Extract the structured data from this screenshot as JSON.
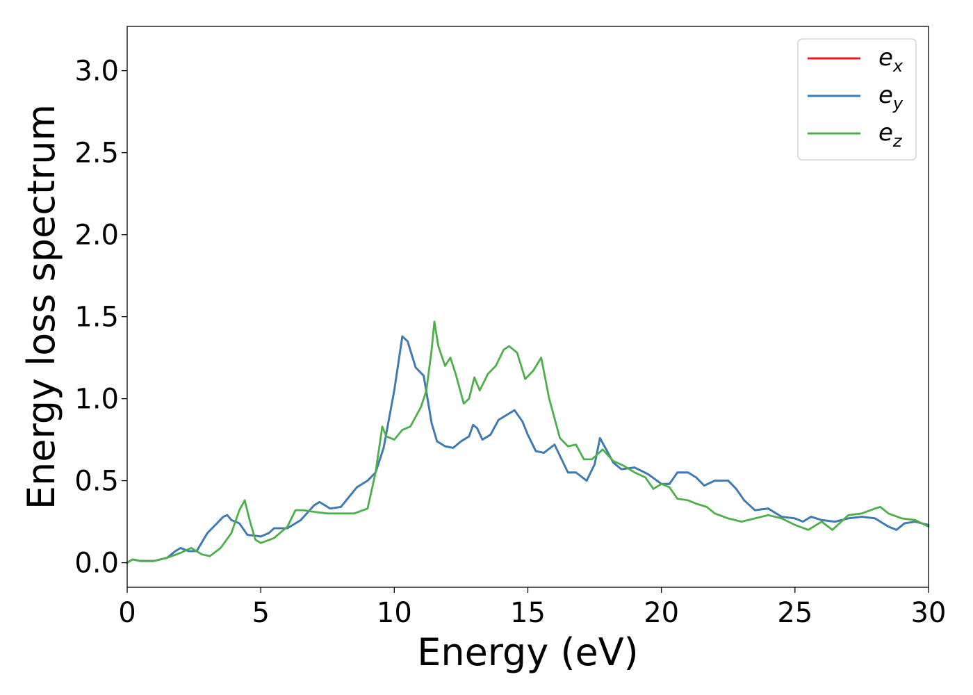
{
  "chart_data": {
    "type": "line",
    "xlabel": "Energy (eV)",
    "ylabel": "Energy loss spectrum",
    "xlim": [
      0,
      30
    ],
    "ylim": [
      -0.15,
      3.27
    ],
    "xticks": [
      0,
      5,
      10,
      15,
      20,
      25,
      30
    ],
    "xtick_labels": [
      "0",
      "5",
      "10",
      "15",
      "20",
      "25",
      "30"
    ],
    "yticks": [
      0.0,
      0.5,
      1.0,
      1.5,
      2.0,
      2.5,
      3.0
    ],
    "ytick_labels": [
      "0.0",
      "0.5",
      "1.0",
      "1.5",
      "2.0",
      "2.5",
      "3.0"
    ],
    "grid": false,
    "legend_position": "top-right",
    "series": [
      {
        "name": "e_x",
        "legend_base": "e",
        "legend_sub": "x",
        "color": "#e41a1c",
        "x": [
          0,
          0.2,
          0.5,
          1,
          1.5,
          1.8,
          2.0,
          2.3,
          2.6,
          3.0,
          3.3,
          3.6,
          3.75,
          3.9,
          4.2,
          4.5,
          5.0,
          5.3,
          5.5,
          6.0,
          6.5,
          7.0,
          7.2,
          7.6,
          8.0,
          8.3,
          8.6,
          9.0,
          9.3,
          9.6,
          10.0,
          10.3,
          10.5,
          10.8,
          11.1,
          11.4,
          11.6,
          11.9,
          12.2,
          12.5,
          12.8,
          12.95,
          13.1,
          13.3,
          13.6,
          13.9,
          14.2,
          14.5,
          14.8,
          15.0,
          15.3,
          15.6,
          16.0,
          16.5,
          16.8,
          17.2,
          17.5,
          17.7,
          17.9,
          18.2,
          18.5,
          19.0,
          19.5,
          20.0,
          20.3,
          20.6,
          21.0,
          21.3,
          21.6,
          22.0,
          22.5,
          22.8,
          23.1,
          23.5,
          24.0,
          24.5,
          25.0,
          25.3,
          25.6,
          26.0,
          26.5,
          27.0,
          27.5,
          28.0,
          28.5,
          28.8,
          29.1,
          29.5,
          30.0
        ],
        "y": [
          0.0,
          0.02,
          0.01,
          0.01,
          0.03,
          0.07,
          0.09,
          0.07,
          0.07,
          0.18,
          0.23,
          0.28,
          0.29,
          0.26,
          0.24,
          0.17,
          0.16,
          0.18,
          0.21,
          0.21,
          0.26,
          0.35,
          0.37,
          0.33,
          0.34,
          0.4,
          0.46,
          0.5,
          0.55,
          0.7,
          1.05,
          1.38,
          1.35,
          1.19,
          1.14,
          0.85,
          0.74,
          0.71,
          0.7,
          0.74,
          0.77,
          0.84,
          0.82,
          0.75,
          0.78,
          0.87,
          0.9,
          0.93,
          0.86,
          0.78,
          0.68,
          0.67,
          0.72,
          0.55,
          0.55,
          0.5,
          0.6,
          0.76,
          0.7,
          0.61,
          0.57,
          0.58,
          0.54,
          0.48,
          0.48,
          0.55,
          0.55,
          0.52,
          0.47,
          0.5,
          0.5,
          0.45,
          0.38,
          0.32,
          0.33,
          0.28,
          0.27,
          0.25,
          0.28,
          0.26,
          0.25,
          0.27,
          0.28,
          0.27,
          0.22,
          0.2,
          0.24,
          0.25,
          0.23
        ]
      },
      {
        "name": "e_y",
        "legend_base": "e",
        "legend_sub": "y",
        "color": "#377eb8",
        "x": [
          0,
          0.2,
          0.5,
          1,
          1.5,
          1.8,
          2.0,
          2.3,
          2.6,
          3.0,
          3.3,
          3.6,
          3.75,
          3.9,
          4.2,
          4.5,
          5.0,
          5.3,
          5.5,
          6.0,
          6.5,
          7.0,
          7.2,
          7.6,
          8.0,
          8.3,
          8.6,
          9.0,
          9.3,
          9.6,
          10.0,
          10.3,
          10.5,
          10.8,
          11.1,
          11.4,
          11.6,
          11.9,
          12.2,
          12.5,
          12.8,
          12.95,
          13.1,
          13.3,
          13.6,
          13.9,
          14.2,
          14.5,
          14.8,
          15.0,
          15.3,
          15.6,
          16.0,
          16.5,
          16.8,
          17.2,
          17.5,
          17.7,
          17.9,
          18.2,
          18.5,
          19.0,
          19.5,
          20.0,
          20.3,
          20.6,
          21.0,
          21.3,
          21.6,
          22.0,
          22.5,
          22.8,
          23.1,
          23.5,
          24.0,
          24.5,
          25.0,
          25.3,
          25.6,
          26.0,
          26.5,
          27.0,
          27.5,
          28.0,
          28.5,
          28.8,
          29.1,
          29.5,
          30.0
        ],
        "y": [
          0.0,
          0.02,
          0.01,
          0.01,
          0.03,
          0.07,
          0.09,
          0.07,
          0.07,
          0.18,
          0.23,
          0.28,
          0.29,
          0.26,
          0.24,
          0.17,
          0.16,
          0.18,
          0.21,
          0.21,
          0.26,
          0.35,
          0.37,
          0.33,
          0.34,
          0.4,
          0.46,
          0.5,
          0.55,
          0.7,
          1.05,
          1.38,
          1.35,
          1.19,
          1.14,
          0.85,
          0.74,
          0.71,
          0.7,
          0.74,
          0.77,
          0.84,
          0.82,
          0.75,
          0.78,
          0.87,
          0.9,
          0.93,
          0.86,
          0.78,
          0.68,
          0.67,
          0.72,
          0.55,
          0.55,
          0.5,
          0.6,
          0.76,
          0.7,
          0.61,
          0.57,
          0.58,
          0.54,
          0.48,
          0.48,
          0.55,
          0.55,
          0.52,
          0.47,
          0.5,
          0.5,
          0.45,
          0.38,
          0.32,
          0.33,
          0.28,
          0.27,
          0.25,
          0.28,
          0.26,
          0.25,
          0.27,
          0.28,
          0.27,
          0.22,
          0.2,
          0.24,
          0.25,
          0.23
        ]
      },
      {
        "name": "e_z",
        "legend_base": "e",
        "legend_sub": "z",
        "color": "#4daf4a",
        "x": [
          0,
          0.2,
          0.5,
          1,
          1.5,
          2.0,
          2.4,
          2.8,
          3.1,
          3.5,
          3.9,
          4.2,
          4.4,
          4.6,
          4.8,
          5.0,
          5.5,
          6.0,
          6.3,
          6.6,
          7.0,
          7.5,
          8.0,
          8.5,
          9.0,
          9.3,
          9.55,
          9.7,
          10.0,
          10.3,
          10.6,
          11.0,
          11.2,
          11.4,
          11.5,
          11.65,
          11.9,
          12.1,
          12.3,
          12.6,
          12.8,
          13.0,
          13.2,
          13.5,
          13.8,
          14.1,
          14.3,
          14.6,
          14.9,
          15.2,
          15.5,
          15.8,
          16.2,
          16.5,
          16.8,
          17.1,
          17.4,
          17.8,
          18.2,
          18.6,
          19.0,
          19.4,
          19.7,
          20.0,
          20.3,
          20.6,
          21.0,
          21.3,
          21.7,
          22.0,
          22.5,
          23.0,
          23.5,
          24.0,
          24.5,
          25.0,
          25.5,
          26.0,
          26.4,
          26.8,
          27.0,
          27.5,
          28.0,
          28.2,
          28.5,
          29.0,
          29.5,
          30.0
        ],
        "y": [
          0.0,
          0.02,
          0.01,
          0.01,
          0.03,
          0.06,
          0.09,
          0.05,
          0.04,
          0.09,
          0.18,
          0.32,
          0.38,
          0.25,
          0.14,
          0.12,
          0.15,
          0.22,
          0.32,
          0.32,
          0.31,
          0.3,
          0.3,
          0.3,
          0.33,
          0.55,
          0.83,
          0.77,
          0.75,
          0.81,
          0.83,
          0.95,
          1.05,
          1.3,
          1.47,
          1.32,
          1.2,
          1.25,
          1.15,
          0.97,
          1.0,
          1.13,
          1.05,
          1.15,
          1.2,
          1.3,
          1.32,
          1.28,
          1.12,
          1.17,
          1.25,
          1.0,
          0.76,
          0.71,
          0.72,
          0.63,
          0.63,
          0.69,
          0.62,
          0.59,
          0.55,
          0.52,
          0.45,
          0.48,
          0.46,
          0.39,
          0.38,
          0.36,
          0.34,
          0.3,
          0.27,
          0.25,
          0.27,
          0.29,
          0.27,
          0.23,
          0.2,
          0.25,
          0.2,
          0.26,
          0.29,
          0.3,
          0.33,
          0.34,
          0.3,
          0.27,
          0.26,
          0.22
        ]
      }
    ]
  }
}
